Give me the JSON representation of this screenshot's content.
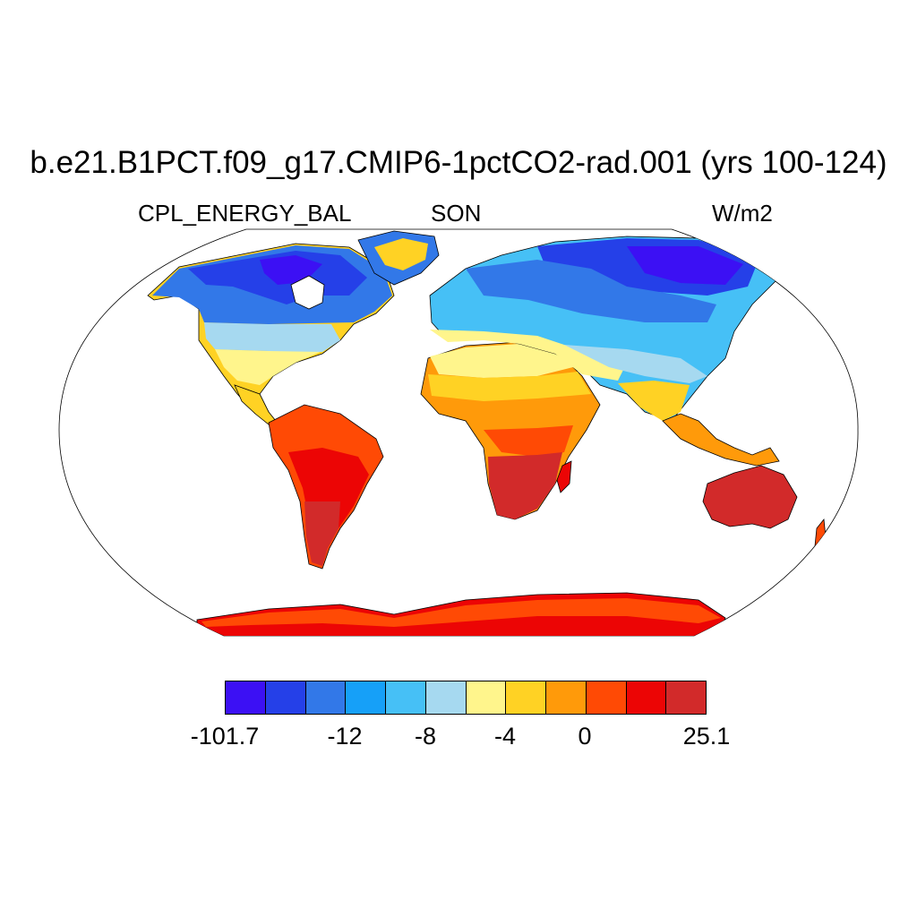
{
  "header": {
    "title": "b.e21.B1PCT.f09_g17.CMIP6-1pctCO2-rad.001 (yrs 100-124)",
    "variable": "CPL_ENERGY_BAL",
    "season": "SON",
    "units": "W/m2"
  },
  "map": {
    "projection": "Robinson",
    "background": "#ffffff",
    "coastline_color": "#000000"
  },
  "colorbar": {
    "colors": [
      "#3c10f4",
      "#2540e8",
      "#3278e8",
      "#16a0f8",
      "#46c0f6",
      "#a6d9f0",
      "#fff58c",
      "#ffd224",
      "#ff9a0a",
      "#ff4a05",
      "#ec0505",
      "#d22a2a"
    ],
    "labels": [
      "-101.7",
      "-12",
      "-8",
      "-4",
      "0",
      "25.1"
    ]
  }
}
